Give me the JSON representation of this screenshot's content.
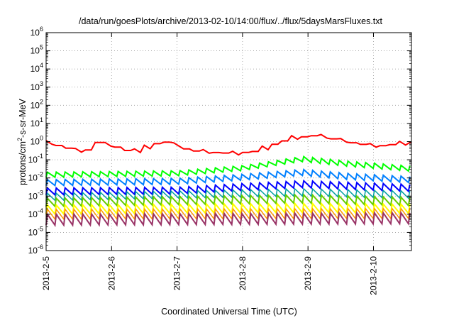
{
  "chart_data": {
    "type": "line",
    "title": "/data/run/goesPlots/archive/2013-02-10/14:00/flux/../flux/5daysMarsFluxes.txt",
    "xlabel": "Coordinated Universal Time (UTC)",
    "ylabel_parts": {
      "base": "protons/cm",
      "sup": "2",
      "rest": "-s-sr-MeV"
    },
    "yscale": "log",
    "ylim_exp": [
      -6,
      6
    ],
    "y_ticks": [
      {
        "b": "10",
        "e": "-6"
      },
      {
        "b": "10",
        "e": "-5"
      },
      {
        "b": "10",
        "e": "-4"
      },
      {
        "b": "10",
        "e": "-3"
      },
      {
        "b": "10",
        "e": "-2"
      },
      {
        "b": "10",
        "e": "-1"
      },
      {
        "b": "10",
        "e": "0"
      },
      {
        "b": "10",
        "e": "1"
      },
      {
        "b": "10",
        "e": "2"
      },
      {
        "b": "10",
        "e": "3"
      },
      {
        "b": "10",
        "e": "4"
      },
      {
        "b": "10",
        "e": "5"
      },
      {
        "b": "10",
        "e": "6"
      }
    ],
    "x_ticks": [
      "2013-2-5",
      "2013-2-6",
      "2013-2-7",
      "2013-2-8",
      "2013-2-9",
      "2013-2-10"
    ],
    "xlim_days": [
      0,
      5.58
    ],
    "grid": true,
    "series": [
      {
        "color": "#ff0000",
        "width": 2,
        "pattern": "trend",
        "trend": [
          [
            0,
            0.85
          ],
          [
            0.55,
            0.25
          ],
          [
            0.75,
            0.9
          ],
          [
            1.05,
            0.5
          ],
          [
            1.25,
            0.28
          ],
          [
            1.35,
            0.3
          ],
          [
            1.75,
            1.05
          ],
          [
            2.05,
            0.5
          ],
          [
            2.15,
            0.32
          ],
          [
            2.55,
            0.25
          ],
          [
            2.85,
            0.22
          ],
          [
            3.2,
            0.3
          ],
          [
            3.5,
            0.85
          ],
          [
            3.75,
            1.6
          ],
          [
            4.1,
            2.2
          ],
          [
            4.4,
            1.3
          ],
          [
            4.7,
            0.8
          ],
          [
            5.0,
            0.55
          ],
          [
            5.58,
            0.9
          ]
        ],
        "period": 0.15,
        "amp": 0.25
      },
      {
        "color": "#00ff00",
        "width": 2,
        "pattern": "saw",
        "trend": [
          [
            0,
            0.015
          ],
          [
            2.0,
            0.018
          ],
          [
            3.0,
            0.035
          ],
          [
            3.9,
            0.11
          ],
          [
            4.6,
            0.06
          ],
          [
            5.58,
            0.032
          ]
        ],
        "period": 0.135,
        "amp": 0.28
      },
      {
        "color": "#0080ff",
        "width": 2,
        "pattern": "saw",
        "trend": [
          [
            0,
            0.0055
          ],
          [
            2.0,
            0.0065
          ],
          [
            3.0,
            0.011
          ],
          [
            3.9,
            0.02
          ],
          [
            4.6,
            0.012
          ],
          [
            5.58,
            0.008
          ]
        ],
        "period": 0.135,
        "amp": 0.33
      },
      {
        "color": "#0000ff",
        "width": 2,
        "pattern": "saw",
        "trend": [
          [
            0,
            0.0018
          ],
          [
            2.0,
            0.002
          ],
          [
            3.0,
            0.0032
          ],
          [
            3.9,
            0.0045
          ],
          [
            5.58,
            0.0028
          ]
        ],
        "period": 0.135,
        "amp": 0.38
      },
      {
        "color": "#00a0a0",
        "width": 1.5,
        "pattern": "saw",
        "trend": [
          [
            0,
            0.0009
          ],
          [
            3.9,
            0.0016
          ],
          [
            5.58,
            0.0012
          ]
        ],
        "period": 0.135,
        "amp": 0.4
      },
      {
        "color": "#66cc00",
        "width": 2,
        "pattern": "saw",
        "trend": [
          [
            0,
            0.00045
          ],
          [
            3.9,
            0.0007
          ],
          [
            5.58,
            0.0005
          ]
        ],
        "period": 0.135,
        "amp": 0.45
      },
      {
        "color": "#ffff00",
        "width": 2,
        "pattern": "saw",
        "trend": [
          [
            0,
            0.00018
          ],
          [
            3.9,
            0.00022
          ],
          [
            5.58,
            0.0002
          ]
        ],
        "period": 0.135,
        "amp": 0.5
      },
      {
        "color": "#ff9900",
        "width": 1.5,
        "pattern": "saw",
        "trend": [
          [
            0,
            0.0001
          ],
          [
            5.58,
            0.00011
          ]
        ],
        "period": 0.135,
        "amp": 0.55
      },
      {
        "color": "#993366",
        "width": 2,
        "pattern": "saw",
        "trend": [
          [
            0,
            5e-05
          ],
          [
            5.58,
            6e-05
          ]
        ],
        "period": 0.135,
        "amp": 0.6
      }
    ]
  }
}
